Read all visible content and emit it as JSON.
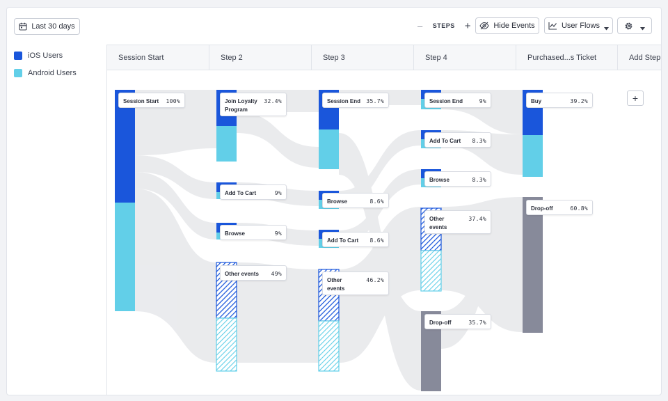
{
  "toolbar": {
    "date_range": "Last 30 days",
    "steps_label": "STEPS",
    "minus": "–",
    "plus": "+",
    "hide_events": "Hide Events",
    "user_flows": "User Flows"
  },
  "legend": [
    {
      "label": "iOS Users",
      "color": "#1a56db"
    },
    {
      "label": "Android Users",
      "color": "#62cfe8"
    }
  ],
  "columns": [
    "Session Start",
    "Step 2",
    "Step 3",
    "Step 4",
    "Purchased...s Ticket",
    "Add Step"
  ],
  "add_step_symbol": "+",
  "nodes": {
    "session_start": {
      "name": "Session Start",
      "pct": "100%"
    },
    "join_loyalty": {
      "name": "Join Loyalty Program",
      "pct": "32.4%"
    },
    "add_to_cart_2": {
      "name": "Add To Cart",
      "pct": "9%"
    },
    "browse_2": {
      "name": "Browse",
      "pct": "9%"
    },
    "other_2": {
      "name": "Other events",
      "pct": "49%"
    },
    "session_end_3": {
      "name": "Session End",
      "pct": "35.7%"
    },
    "browse_3": {
      "name": "Browse",
      "pct": "8.6%"
    },
    "add_to_cart_3": {
      "name": "Add To Cart",
      "pct": "8.6%"
    },
    "other_3": {
      "name": "Other events",
      "pct": "46.2%"
    },
    "session_end_4": {
      "name": "Session End",
      "pct": "9%"
    },
    "add_to_cart_4": {
      "name": "Add To Cart",
      "pct": "8.3%"
    },
    "browse_4": {
      "name": "Browse",
      "pct": "8.3%"
    },
    "other_4": {
      "name": "Other events",
      "pct": "37.4%"
    },
    "dropoff_4": {
      "name": "Drop-off",
      "pct": "35.7%"
    },
    "buy_5": {
      "name": "Buy",
      "pct": "39.2%"
    },
    "dropoff_5": {
      "name": "Drop-off",
      "pct": "60.8%"
    }
  },
  "colors": {
    "ios": "#1a56db",
    "android": "#62cfe8",
    "dropoff": "#878a9a",
    "flow": "#d9dbe0"
  }
}
